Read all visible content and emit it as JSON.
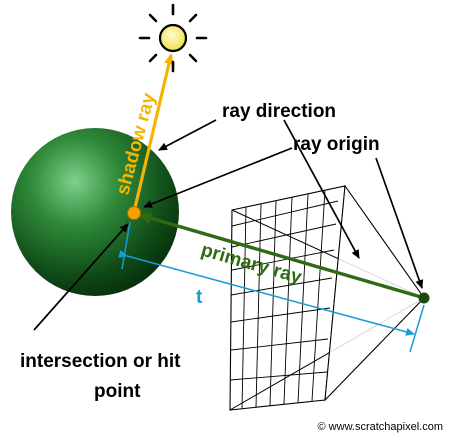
{
  "labels": {
    "shadow_ray": "shadow ray",
    "ray_direction": "ray direction",
    "ray_origin": "ray origin",
    "primary_ray": "primary ray",
    "t": "t",
    "hit_line1": "intersection or hit",
    "hit_line2": "point",
    "copyright": "© www.scratchapixel.com"
  },
  "colors": {
    "shadow_ray": "#f5b400",
    "primary_ray": "#2e6b12",
    "t_measure": "#1a9ad6",
    "sun": "#f5e94a",
    "hit_point": "#f4a300",
    "eye": "#1b4a12",
    "annotation": "#000000"
  },
  "icons": {
    "sun": "sun-icon",
    "eye": "camera-eye-point"
  }
}
